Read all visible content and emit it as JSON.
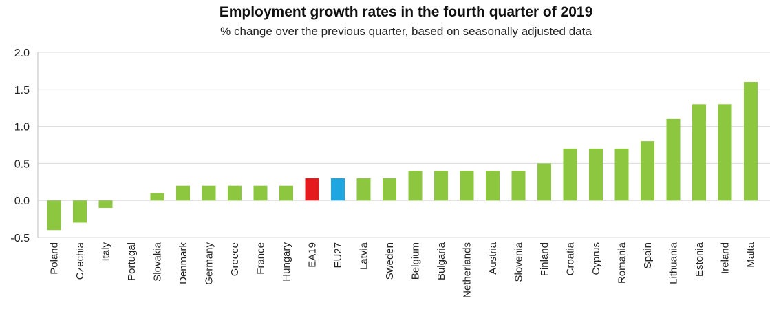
{
  "chart_data": {
    "type": "bar",
    "title": "Employment growth rates in the fourth quarter of 2019",
    "subtitle": "% change over the previous quarter, based on seasonally adjusted data",
    "xlabel": "",
    "ylabel": "",
    "ylim": [
      -0.5,
      2.0
    ],
    "yticks": [
      "2.0",
      "1.5",
      "1.0",
      "0.5",
      "0.0",
      "-0.5"
    ],
    "ytick_values": [
      2.0,
      1.5,
      1.0,
      0.5,
      0.0,
      -0.5
    ],
    "grid": true,
    "categories": [
      "Poland",
      "Czechia",
      "Italy",
      "Portugal",
      "Slovakia",
      "Denmark",
      "Germany",
      "Greece",
      "France",
      "Hungary",
      "EA19",
      "EU27",
      "Latvia",
      "Sweden",
      "Belgium",
      "Bulgaria",
      "Netherlands",
      "Austria",
      "Slovenia",
      "Finland",
      "Croatia",
      "Cyprus",
      "Romania",
      "Spain",
      "Lithuania",
      "Estonia",
      "Ireland",
      "Malta"
    ],
    "values": [
      -0.4,
      -0.3,
      -0.1,
      0.0,
      0.1,
      0.2,
      0.2,
      0.2,
      0.2,
      0.2,
      0.3,
      0.3,
      0.3,
      0.3,
      0.4,
      0.4,
      0.4,
      0.4,
      0.4,
      0.5,
      0.7,
      0.7,
      0.7,
      0.8,
      1.1,
      1.3,
      1.3,
      1.6
    ],
    "colors": {
      "default": "#8DC63F",
      "EA19": "#E41A1C",
      "EU27": "#1EA6E0",
      "grid": "#d9d9d9",
      "axis": "#bfbfbf"
    }
  }
}
